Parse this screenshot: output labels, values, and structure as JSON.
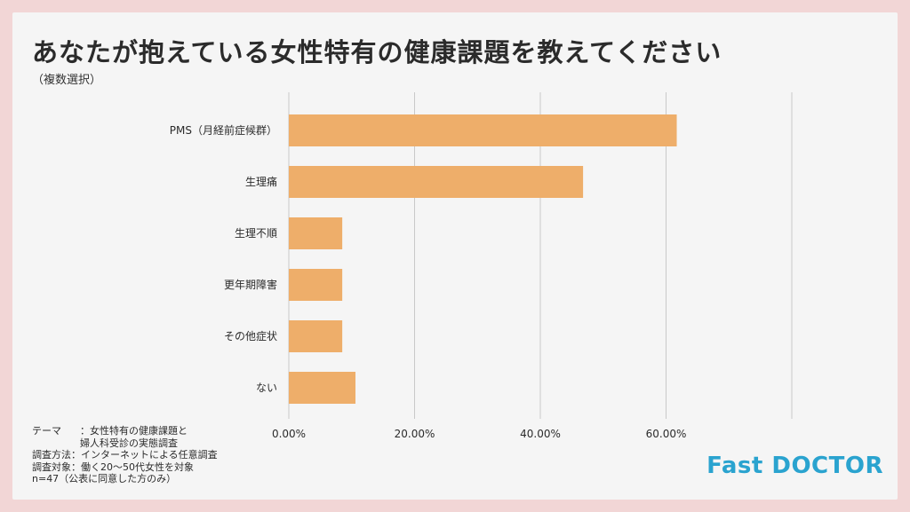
{
  "title": "あなたが抱えている女性特有の健康課題を教えてください",
  "subtitle": "（複数選択）",
  "chart_data": {
    "type": "bar",
    "orientation": "horizontal",
    "categories": [
      "PMS（月経前症候群）",
      "生理痛",
      "生理不順",
      "更年期障害",
      "その他症状",
      "ない"
    ],
    "values": [
      61.7,
      46.8,
      8.5,
      8.5,
      8.5,
      10.6
    ],
    "xlim": [
      0,
      80
    ],
    "xticks": [
      0,
      20,
      40,
      60
    ],
    "xtick_labels": [
      "0.00%",
      "20.00%",
      "40.00%",
      "60.00%"
    ],
    "grid": true,
    "bar_color": "#eeae6a"
  },
  "notes": {
    "theme_label": "テーマ",
    "theme_value_1": "：女性特有の健康課題と",
    "theme_value_2": "婦人科受診の実態調査",
    "method_label": "調査方法",
    "method_value": "：インターネットによる任意調査",
    "target_label": "調査対象",
    "target_value": "：働く20〜50代女性を対象",
    "n_text": "n=47（公表に同意した方のみ）"
  },
  "logo": "Fast DOCTOR"
}
